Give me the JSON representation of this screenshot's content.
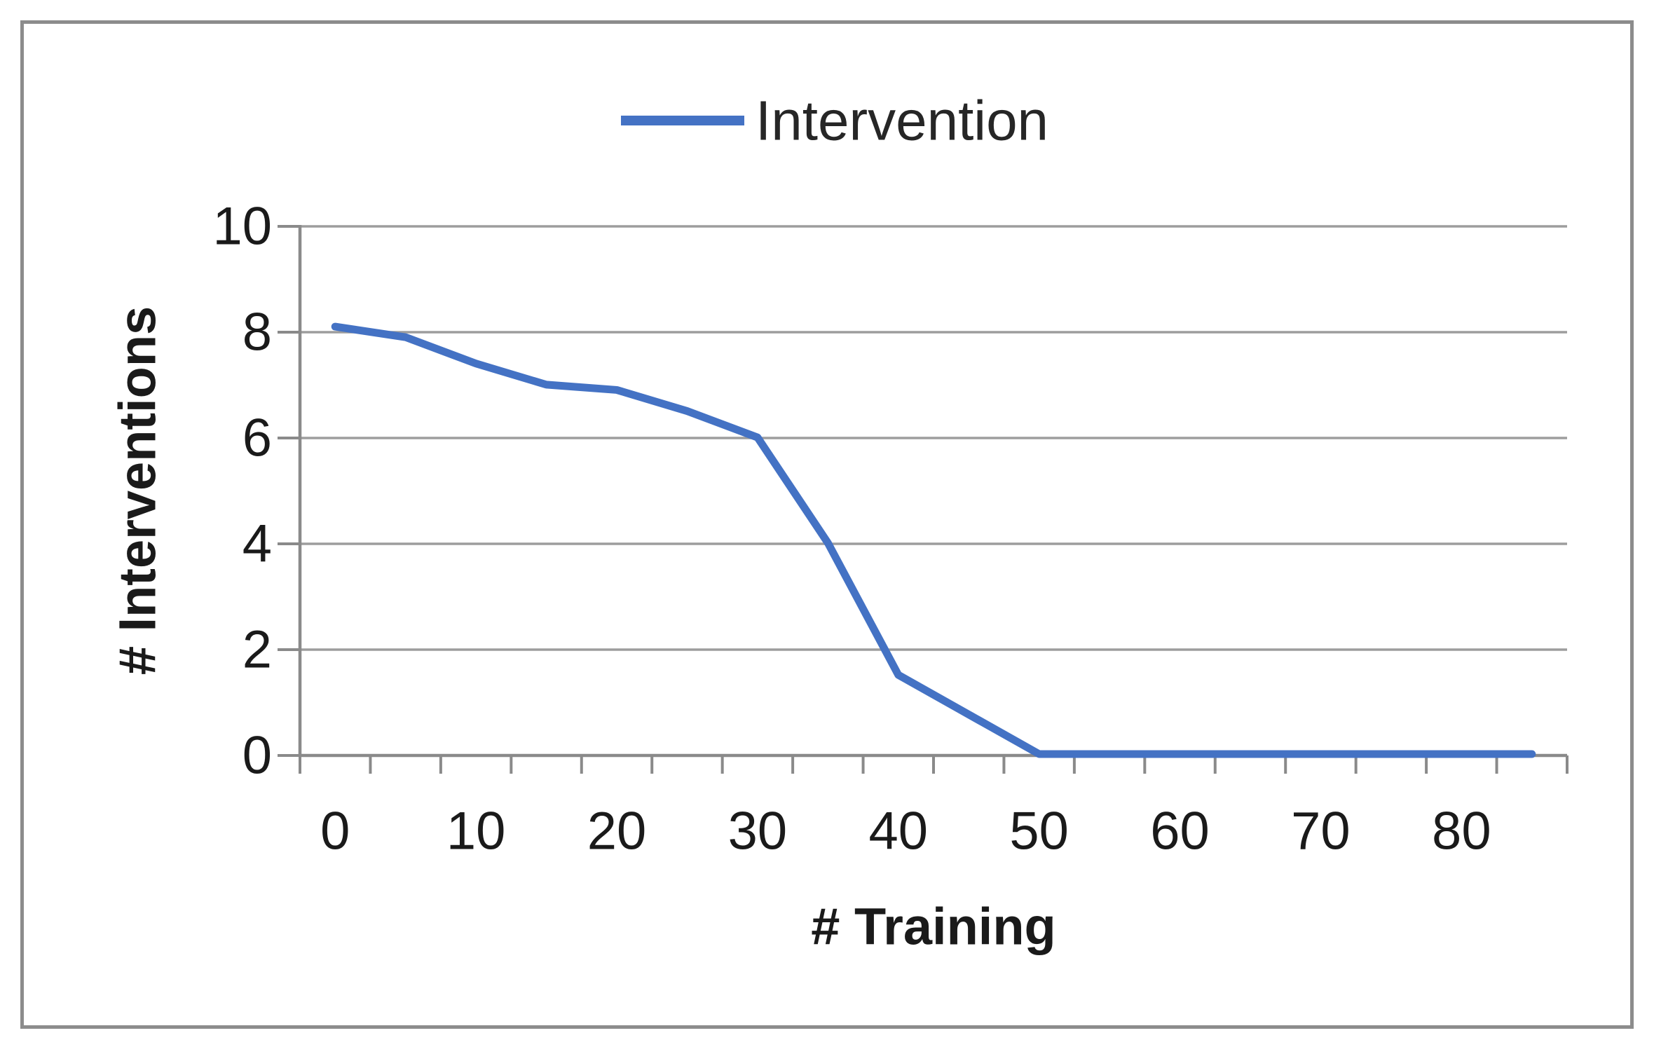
{
  "figure": {
    "background": "#ffffff",
    "border_color": "#8C8C8C"
  },
  "legend": {
    "label": "Intervention",
    "line_color": "#4472C4",
    "position": "top-center"
  },
  "chart_data": {
    "type": "line",
    "title": "",
    "xlabel": "# Training",
    "ylabel": "# Interventions",
    "x": [
      0,
      5,
      10,
      15,
      20,
      25,
      30,
      35,
      40,
      45,
      50,
      55,
      60,
      65,
      70,
      75,
      80,
      85
    ],
    "series": [
      {
        "name": "Intervention",
        "color": "#4472C4",
        "values": [
          8.1,
          7.9,
          7.4,
          7.0,
          6.9,
          6.5,
          6.0,
          4.0,
          1.5,
          0.75,
          0,
          0,
          0,
          0,
          0,
          0,
          0,
          0
        ]
      }
    ],
    "xlim": [
      0,
      85
    ],
    "ylim": [
      0,
      10
    ],
    "x_tick_labels": [
      "0",
      "10",
      "20",
      "30",
      "40",
      "50",
      "60",
      "70",
      "80"
    ],
    "y_tick_labels": [
      "0",
      "2",
      "4",
      "6",
      "8",
      "10"
    ],
    "grid": true,
    "gridline_color": "#9D9D9D",
    "axis_color": "#8A8A8A",
    "legend_position": "top"
  }
}
